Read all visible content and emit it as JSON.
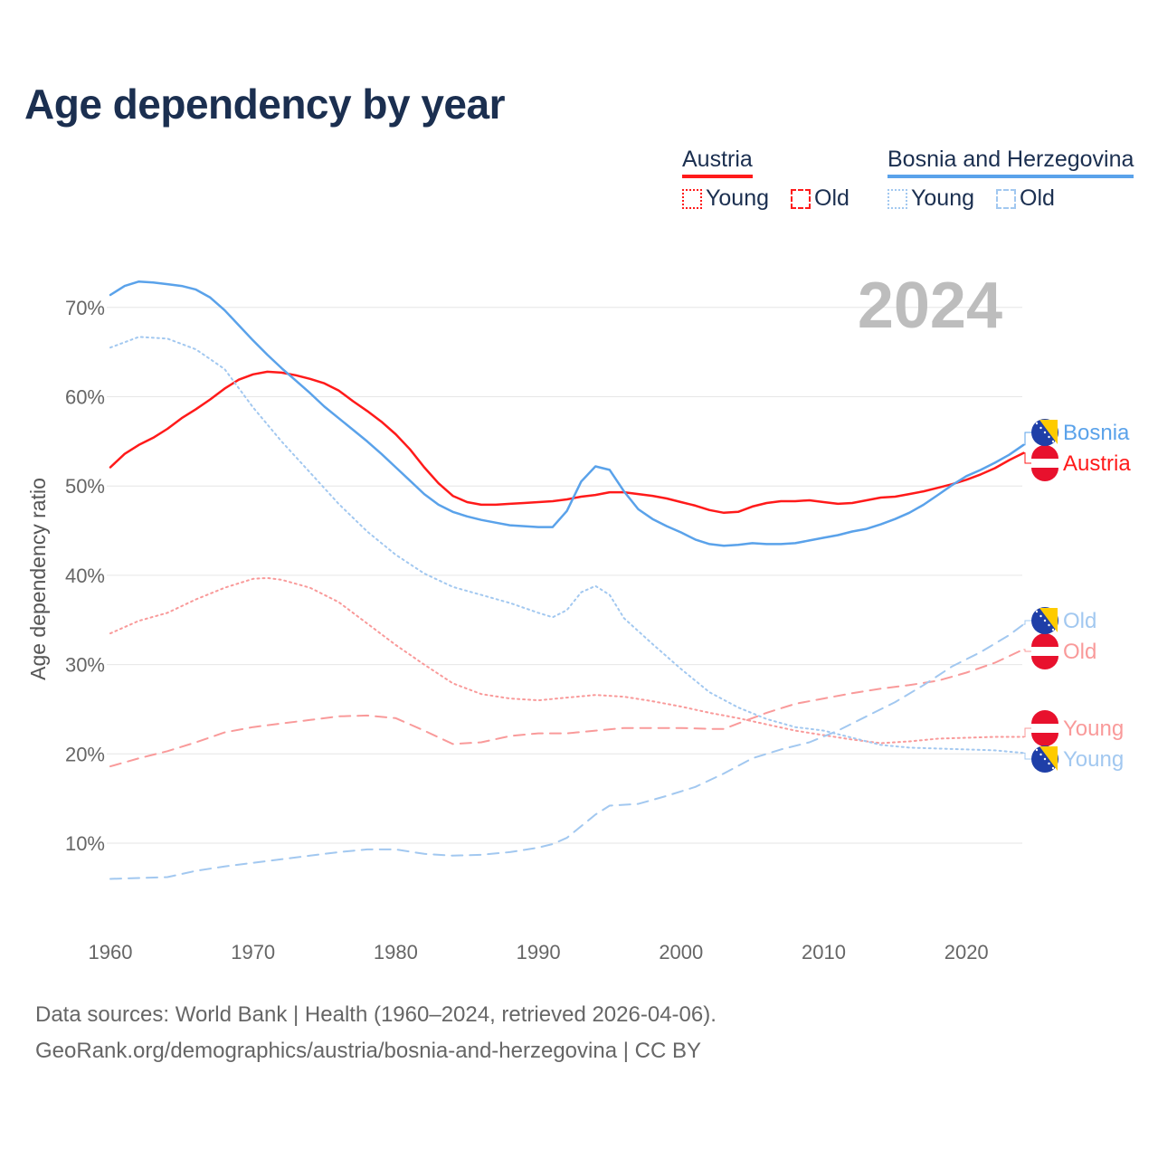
{
  "title": "Age dependency by year",
  "legend": {
    "groups": [
      {
        "name": "Austria",
        "color": "#ff1a1a",
        "light": "#f99a9a",
        "items": [
          "Young",
          "Old"
        ]
      },
      {
        "name": "Bosnia and Herzegovina",
        "color": "#5aa2ea",
        "light": "#a2c8f0",
        "items": [
          "Young",
          "Old"
        ]
      }
    ]
  },
  "sources": {
    "line1": "Data sources: World Bank | Health (1960–2024, retrieved 2026-04-06).",
    "line2": "GeoRank.org/demographics/austria/bosnia-and-herzegovina | CC BY"
  },
  "chart_data": {
    "type": "line",
    "title": "Age dependency by year",
    "year_label": "2024",
    "xlabel": "",
    "ylabel": "Age dependency ratio",
    "xlim": [
      1960,
      2024
    ],
    "ylim": [
      2,
      78
    ],
    "x_ticks": [
      "1960",
      "1970",
      "1980",
      "1990",
      "2000",
      "2010",
      "2020"
    ],
    "y_ticks": [
      "10%",
      "20%",
      "30%",
      "40%",
      "50%",
      "60%",
      "70%"
    ],
    "grid": true,
    "series": [
      {
        "name": "Austria",
        "kind": "total",
        "end_label": "Austria",
        "color": "#ff1a1a",
        "dash": "solid",
        "x": [
          1960,
          1961,
          1962,
          1963,
          1964,
          1965,
          1966,
          1967,
          1968,
          1969,
          1970,
          1971,
          1972,
          1973,
          1974,
          1975,
          1976,
          1977,
          1978,
          1979,
          1980,
          1981,
          1982,
          1983,
          1984,
          1985,
          1986,
          1987,
          1988,
          1989,
          1990,
          1991,
          1992,
          1993,
          1994,
          1995,
          1996,
          1997,
          1998,
          1999,
          2000,
          2001,
          2002,
          2003,
          2004,
          2005,
          2006,
          2007,
          2008,
          2009,
          2010,
          2011,
          2012,
          2013,
          2014,
          2015,
          2016,
          2017,
          2018,
          2019,
          2020,
          2021,
          2022,
          2023,
          2024
        ],
        "y": [
          52.1,
          53.6,
          54.6,
          55.4,
          56.4,
          57.6,
          58.6,
          59.7,
          60.9,
          61.9,
          62.5,
          62.8,
          62.7,
          62.4,
          62.0,
          61.5,
          60.7,
          59.5,
          58.4,
          57.2,
          55.8,
          54.1,
          52.1,
          50.3,
          48.9,
          48.2,
          47.9,
          47.9,
          48.0,
          48.1,
          48.2,
          48.3,
          48.5,
          48.8,
          49.0,
          49.3,
          49.3,
          49.1,
          48.9,
          48.6,
          48.2,
          47.8,
          47.3,
          47.0,
          47.1,
          47.7,
          48.1,
          48.3,
          48.3,
          48.4,
          48.2,
          48.0,
          48.1,
          48.4,
          48.7,
          48.8,
          49.1,
          49.4,
          49.8,
          50.2,
          50.7,
          51.3,
          52.0,
          52.9,
          53.7
        ]
      },
      {
        "name": "Bosnia and Herzegovina",
        "kind": "total",
        "end_label": "Bosnia",
        "color": "#5aa2ea",
        "dash": "solid",
        "x": [
          1960,
          1961,
          1962,
          1963,
          1964,
          1965,
          1966,
          1967,
          1968,
          1969,
          1970,
          1971,
          1972,
          1973,
          1974,
          1975,
          1976,
          1977,
          1978,
          1979,
          1980,
          1981,
          1982,
          1983,
          1984,
          1985,
          1986,
          1987,
          1988,
          1989,
          1990,
          1991,
          1992,
          1993,
          1994,
          1995,
          1996,
          1997,
          1998,
          1999,
          2000,
          2001,
          2002,
          2003,
          2004,
          2005,
          2006,
          2007,
          2008,
          2009,
          2010,
          2011,
          2012,
          2013,
          2014,
          2015,
          2016,
          2017,
          2018,
          2019,
          2020,
          2021,
          2022,
          2023,
          2024
        ],
        "y": [
          71.4,
          72.4,
          72.9,
          72.8,
          72.6,
          72.4,
          72.0,
          71.1,
          69.7,
          68.0,
          66.3,
          64.7,
          63.2,
          61.8,
          60.4,
          58.9,
          57.6,
          56.3,
          55.0,
          53.6,
          52.1,
          50.6,
          49.1,
          47.9,
          47.1,
          46.6,
          46.2,
          45.9,
          45.6,
          45.5,
          45.4,
          45.4,
          47.2,
          50.5,
          52.2,
          51.8,
          49.4,
          47.4,
          46.3,
          45.5,
          44.8,
          44.0,
          43.5,
          43.3,
          43.4,
          43.6,
          43.5,
          43.5,
          43.6,
          43.9,
          44.2,
          44.5,
          44.9,
          45.2,
          45.7,
          46.3,
          47.0,
          47.9,
          49.0,
          50.1,
          51.1,
          51.8,
          52.6,
          53.5,
          54.6
        ]
      },
      {
        "name": "Austria",
        "kind": "young",
        "end_label": "Young",
        "color": "#f99a9a",
        "dash": "dotted",
        "x": [
          1960,
          1962,
          1964,
          1966,
          1968,
          1970,
          1971,
          1972,
          1974,
          1976,
          1978,
          1980,
          1982,
          1984,
          1986,
          1988,
          1990,
          1992,
          1994,
          1996,
          1998,
          2000,
          2002,
          2004,
          2006,
          2008,
          2010,
          2012,
          2014,
          2016,
          2018,
          2020,
          2022,
          2024
        ],
        "y": [
          33.5,
          34.9,
          35.8,
          37.3,
          38.6,
          39.6,
          39.7,
          39.5,
          38.6,
          37.0,
          34.6,
          32.2,
          30.0,
          27.9,
          26.7,
          26.2,
          26.0,
          26.3,
          26.6,
          26.4,
          25.9,
          25.3,
          24.6,
          24.0,
          23.3,
          22.6,
          22.1,
          21.6,
          21.2,
          21.4,
          21.7,
          21.8,
          21.9,
          21.9
        ]
      },
      {
        "name": "Austria",
        "kind": "old",
        "end_label": "Old",
        "color": "#f99a9a",
        "dash": "dashed",
        "x": [
          1960,
          1962,
          1964,
          1966,
          1968,
          1970,
          1972,
          1974,
          1976,
          1978,
          1980,
          1982,
          1984,
          1986,
          1988,
          1990,
          1992,
          1994,
          1996,
          1998,
          2000,
          2002,
          2003,
          2004,
          2006,
          2008,
          2010,
          2012,
          2014,
          2016,
          2018,
          2020,
          2022,
          2024
        ],
        "y": [
          18.6,
          19.5,
          20.3,
          21.3,
          22.4,
          23.0,
          23.4,
          23.8,
          24.2,
          24.3,
          24.0,
          22.6,
          21.1,
          21.3,
          22.0,
          22.3,
          22.3,
          22.6,
          22.9,
          22.9,
          22.9,
          22.8,
          22.8,
          23.4,
          24.6,
          25.6,
          26.2,
          26.8,
          27.3,
          27.7,
          28.2,
          29.1,
          30.2,
          31.7
        ]
      },
      {
        "name": "Bosnia and Herzegovina",
        "kind": "young",
        "end_label": "Young",
        "color": "#a2c8f0",
        "dash": "dotted",
        "x": [
          1960,
          1962,
          1964,
          1966,
          1968,
          1970,
          1972,
          1974,
          1976,
          1978,
          1980,
          1982,
          1984,
          1986,
          1988,
          1990,
          1991,
          1992,
          1993,
          1994,
          1995,
          1996,
          1998,
          2000,
          2002,
          2004,
          2006,
          2008,
          2010,
          2012,
          2014,
          2016,
          2018,
          2020,
          2022,
          2024
        ],
        "y": [
          65.5,
          66.7,
          66.5,
          65.3,
          63.1,
          58.8,
          55.0,
          51.5,
          48.0,
          44.9,
          42.3,
          40.2,
          38.7,
          37.8,
          36.9,
          35.8,
          35.3,
          36.1,
          38.1,
          38.8,
          37.8,
          35.2,
          32.3,
          29.5,
          26.9,
          25.2,
          23.9,
          23.0,
          22.6,
          21.8,
          21.0,
          20.7,
          20.6,
          20.5,
          20.4,
          20.1
        ]
      },
      {
        "name": "Bosnia and Herzegovina",
        "kind": "old",
        "end_label": "Old",
        "color": "#a2c8f0",
        "dash": "dashed",
        "x": [
          1960,
          1964,
          1966,
          1968,
          1970,
          1972,
          1974,
          1976,
          1978,
          1980,
          1982,
          1984,
          1986,
          1988,
          1990,
          1991,
          1992,
          1994,
          1995,
          1997,
          1999,
          2001,
          2003,
          2005,
          2007,
          2009,
          2011,
          2013,
          2015,
          2017,
          2019,
          2021,
          2023,
          2024
        ],
        "y": [
          6.0,
          6.2,
          6.9,
          7.4,
          7.8,
          8.2,
          8.6,
          9.0,
          9.3,
          9.3,
          8.8,
          8.6,
          8.7,
          9.0,
          9.5,
          9.9,
          10.6,
          13.2,
          14.2,
          14.4,
          15.3,
          16.3,
          17.8,
          19.5,
          20.5,
          21.3,
          22.6,
          24.2,
          25.8,
          27.7,
          29.8,
          31.4,
          33.3,
          34.5
        ]
      }
    ]
  }
}
